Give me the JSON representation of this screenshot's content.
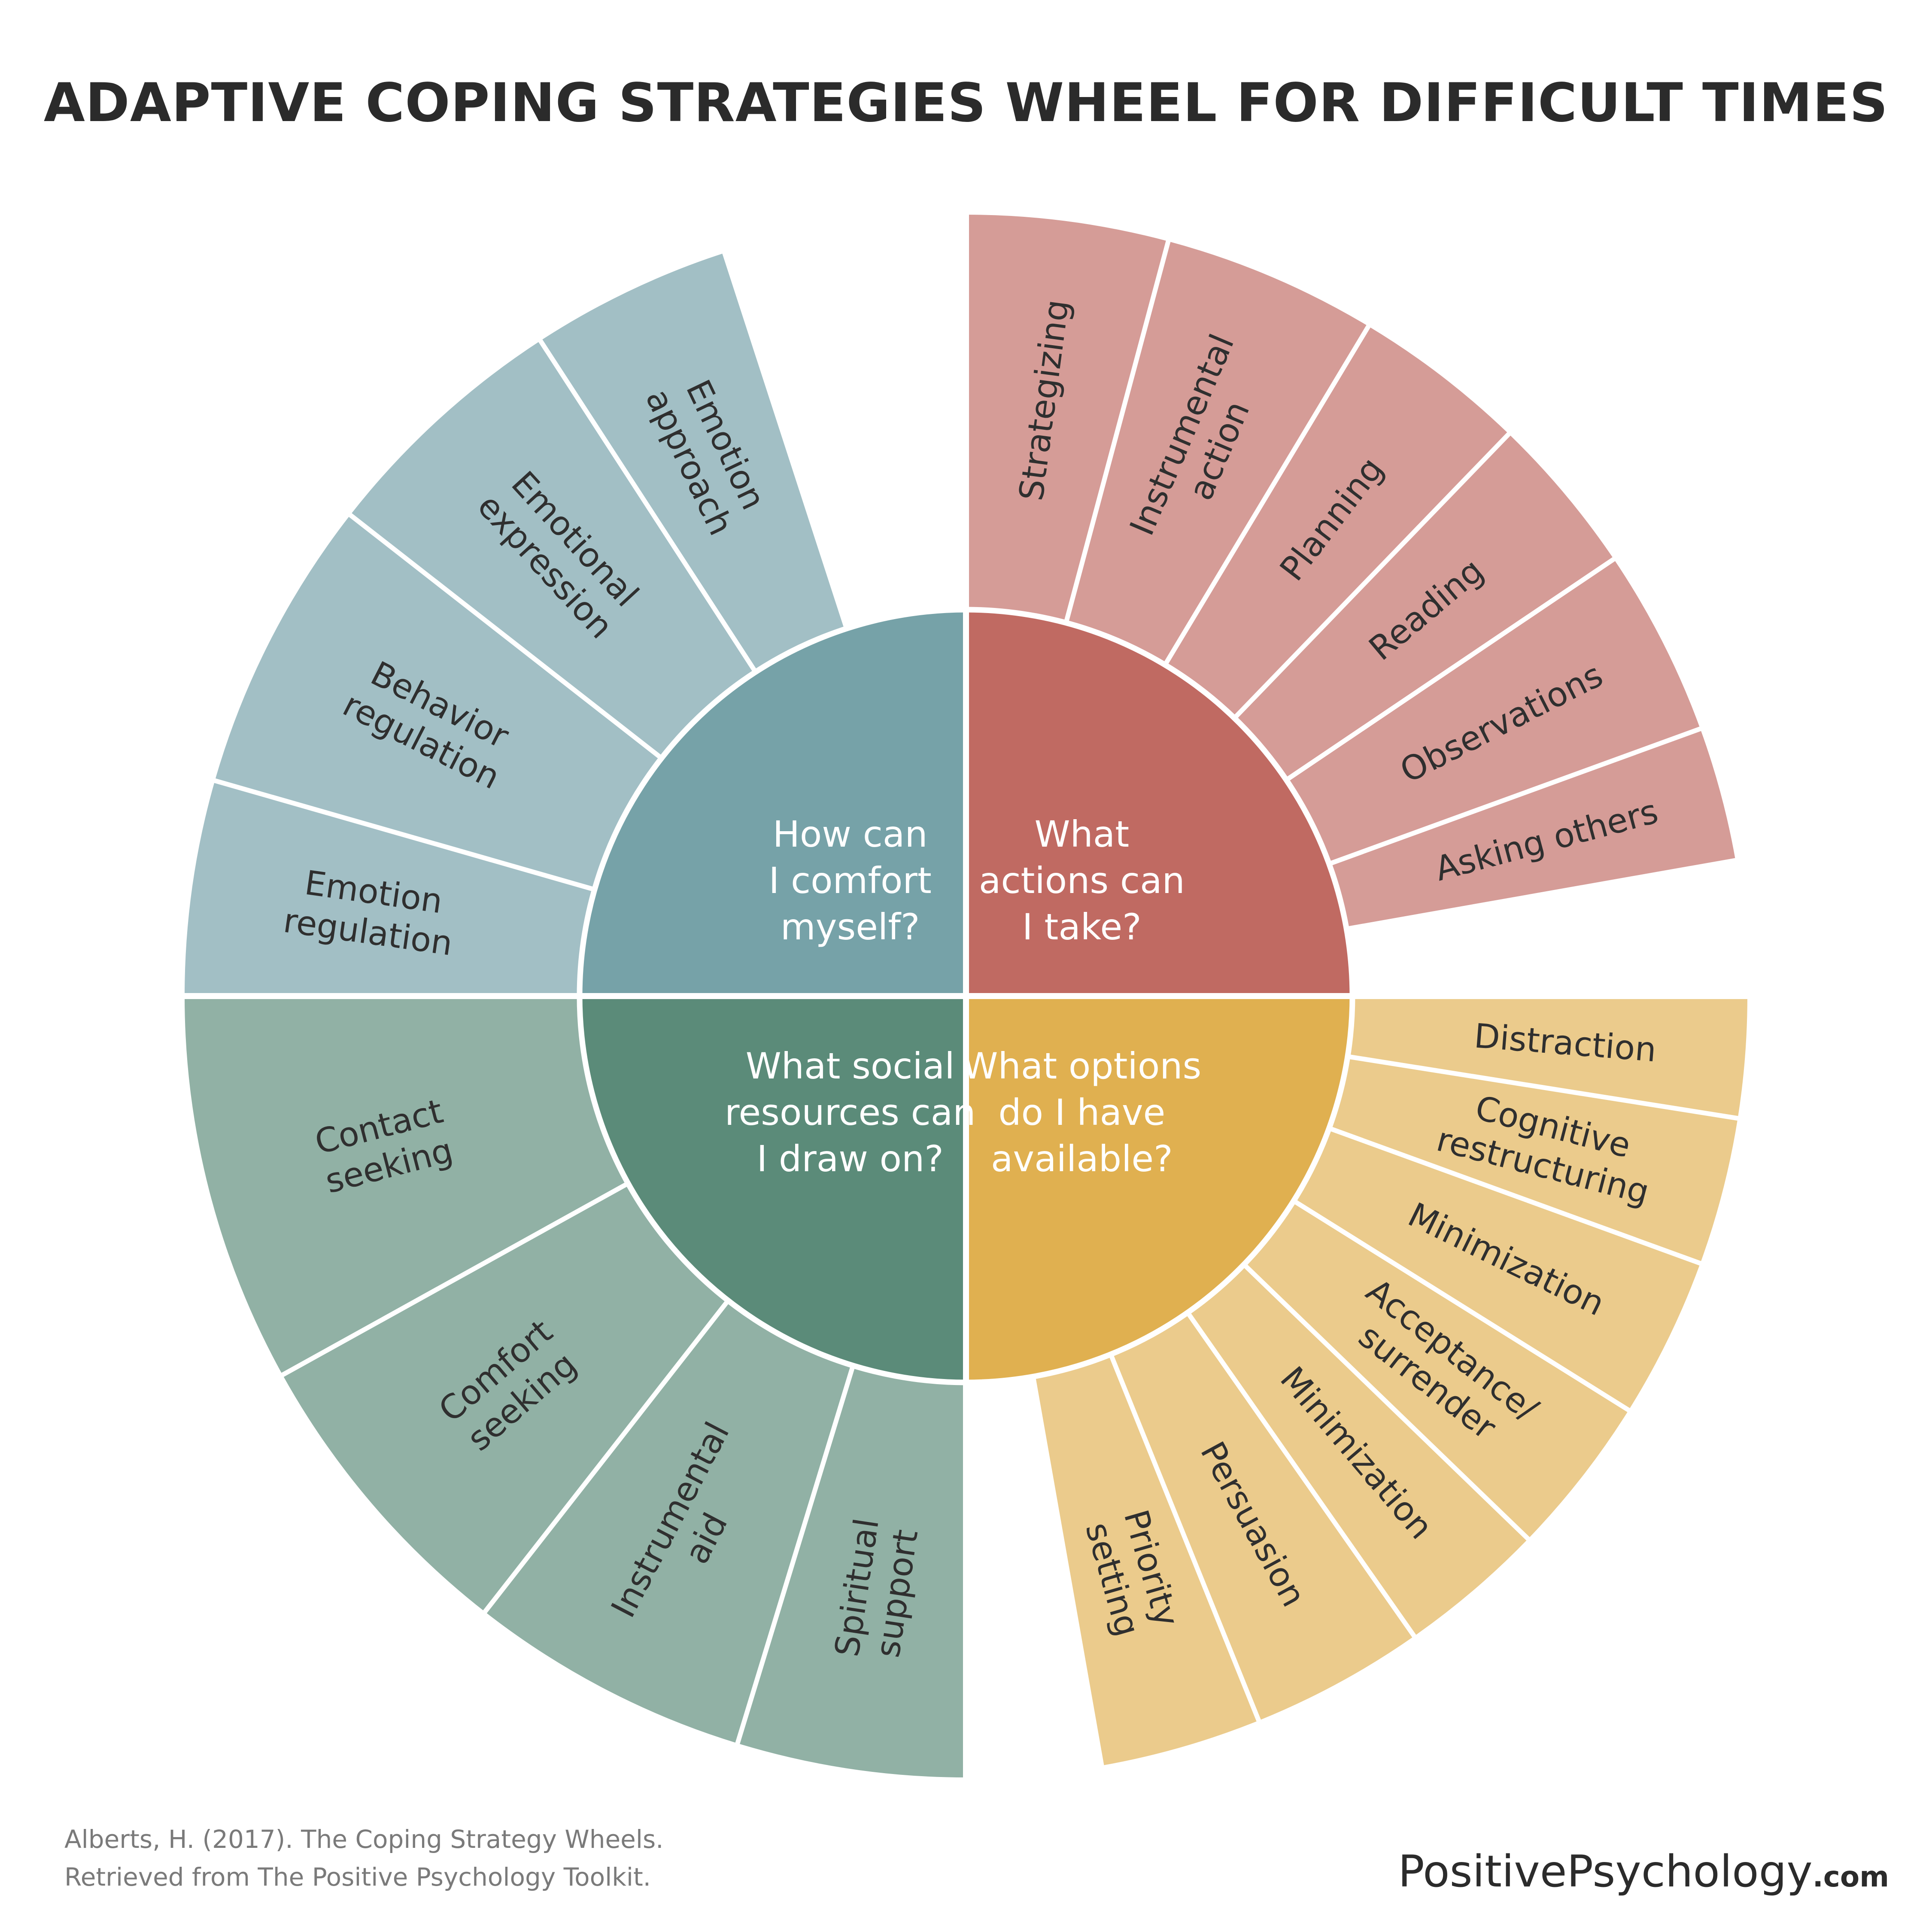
{
  "title": "ADAPTIVE COPING STRATEGIES WHEEL FOR DIFFICULT TIMES",
  "colors": {
    "action_inner": "#c06a62",
    "action_outer": "#d59c97",
    "options_inner": "#e0b050",
    "options_outer": "#ebcb8c",
    "social_inner": "#5b8b79",
    "social_outer": "#91b1a5",
    "comfort_inner": "#76a2a8",
    "comfort_outer": "#a2bfc5",
    "divider": "#ffffff"
  },
  "quadrants": [
    {
      "id": "actions",
      "question": [
        "What",
        "actions can",
        "I take?"
      ],
      "segments": [
        [
          "Strategizing"
        ],
        [
          "Instrumental",
          "action"
        ],
        [
          "Planning"
        ],
        [
          "Reading"
        ],
        [
          "Observations"
        ],
        [
          "Asking others"
        ]
      ]
    },
    {
      "id": "options",
      "question": [
        "What options",
        "do I have",
        "available?"
      ],
      "segments": [
        [
          "Distraction"
        ],
        [
          "Cognitive",
          "restructuring"
        ],
        [
          "Minimization"
        ],
        [
          "Acceptance/",
          "surrender"
        ],
        [
          "Minimization"
        ],
        [
          "Persuasion"
        ],
        [
          "Priority",
          "setting"
        ]
      ]
    },
    {
      "id": "social",
      "question": [
        "What social",
        "resources can",
        "I draw on?"
      ],
      "segments": [
        [
          "Spiritual",
          "support"
        ],
        [
          "Instrumental",
          "aid"
        ],
        [
          "Comfort",
          "seeking"
        ],
        [
          "Contact",
          "seeking"
        ]
      ]
    },
    {
      "id": "comfort",
      "question": [
        "How can",
        "I comfort",
        "myself?"
      ],
      "segments": [
        [
          "Emotion",
          "regulation"
        ],
        [
          "Behavior",
          "regulation"
        ],
        [
          "Emotional",
          "expression"
        ],
        [
          "Emotion",
          "approach"
        ]
      ]
    }
  ],
  "citation": [
    "Alberts, H. (2017). The Coping Strategy Wheels.",
    "Retrieved from The Positive Psychology Toolkit."
  ],
  "brand": {
    "name": "PositivePsychology",
    "tld": ".com"
  }
}
